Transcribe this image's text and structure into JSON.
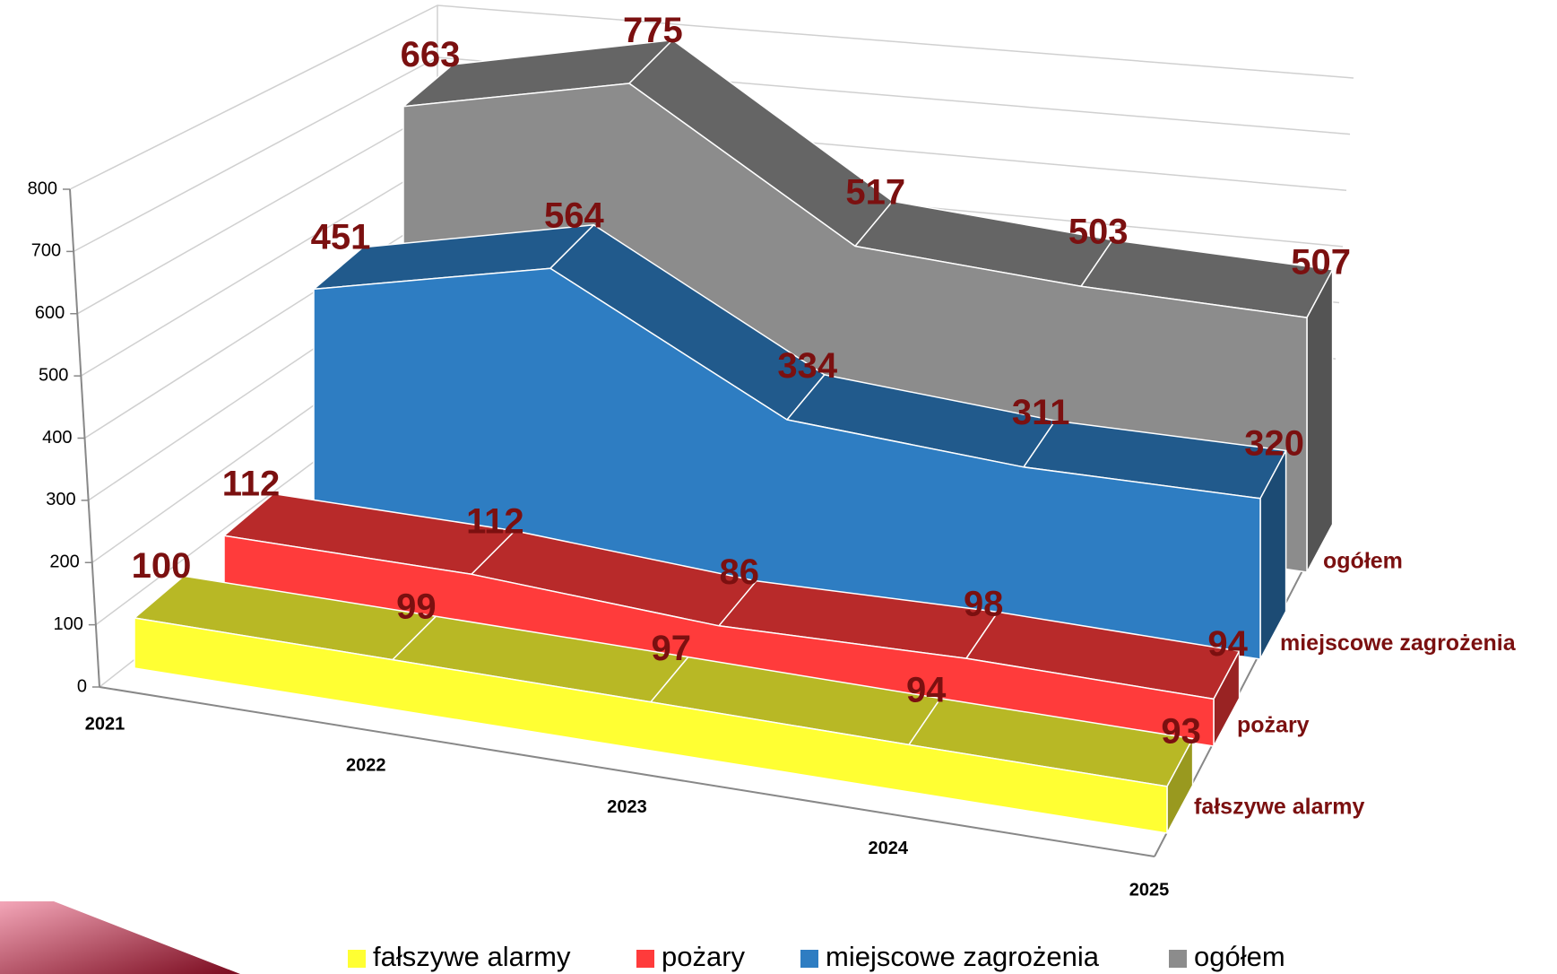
{
  "chart_data": {
    "type": "area3d",
    "categories": [
      "2021",
      "2022",
      "2023",
      "2024",
      "2025"
    ],
    "series": [
      {
        "name": "fałszywe alarmy",
        "color": "#ffff33",
        "values": [
          100,
          99,
          97,
          94,
          93
        ]
      },
      {
        "name": "pożary",
        "color": "#ff3b3b",
        "values": [
          112,
          112,
          86,
          98,
          94
        ]
      },
      {
        "name": "miejscowe zagrożenia",
        "color": "#2e7dc2",
        "values": [
          451,
          564,
          334,
          311,
          320
        ]
      },
      {
        "name": "ogółem",
        "color": "#8c8c8c",
        "values": [
          663,
          775,
          517,
          503,
          507
        ]
      }
    ],
    "ylim": [
      0,
      800
    ],
    "yticks": [
      0,
      100,
      200,
      300,
      400,
      500,
      600,
      700,
      800
    ],
    "grid": true,
    "legend": "bottom",
    "label_color": "#7b1010"
  }
}
